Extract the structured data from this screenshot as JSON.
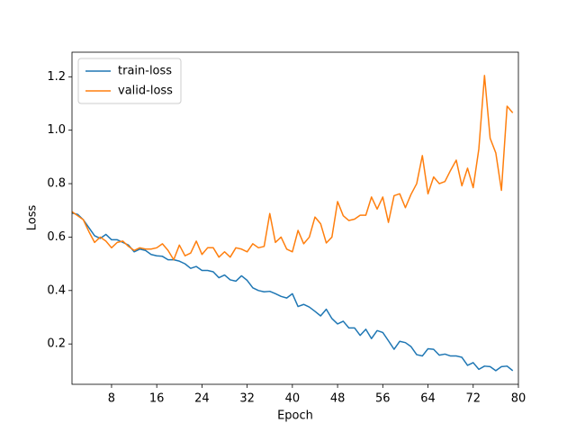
{
  "chart_data": {
    "type": "line",
    "xlabel": "Epoch",
    "ylabel": "Loss",
    "x": [
      1,
      2,
      3,
      4,
      5,
      6,
      7,
      8,
      9,
      10,
      11,
      12,
      13,
      14,
      15,
      16,
      17,
      18,
      19,
      20,
      21,
      22,
      23,
      24,
      25,
      26,
      27,
      28,
      29,
      30,
      31,
      32,
      33,
      34,
      35,
      36,
      37,
      38,
      39,
      40,
      41,
      42,
      43,
      44,
      45,
      46,
      47,
      48,
      49,
      50,
      51,
      52,
      53,
      54,
      55,
      56,
      57,
      58,
      59,
      60,
      61,
      62,
      63,
      64,
      65,
      66,
      67,
      68,
      69,
      70,
      71,
      72,
      73,
      74,
      75,
      76,
      77,
      78,
      79
    ],
    "series": [
      {
        "name": "train-loss",
        "color": "#1f77b4",
        "values": [
          0.69,
          0.685,
          0.665,
          0.635,
          0.605,
          0.595,
          0.61,
          0.59,
          0.59,
          0.58,
          0.57,
          0.545,
          0.555,
          0.55,
          0.535,
          0.53,
          0.528,
          0.515,
          0.515,
          0.51,
          0.5,
          0.483,
          0.49,
          0.475,
          0.475,
          0.47,
          0.448,
          0.458,
          0.44,
          0.435,
          0.455,
          0.438,
          0.41,
          0.4,
          0.395,
          0.397,
          0.388,
          0.378,
          0.372,
          0.388,
          0.34,
          0.348,
          0.338,
          0.322,
          0.305,
          0.33,
          0.295,
          0.275,
          0.285,
          0.26,
          0.26,
          0.232,
          0.255,
          0.22,
          0.25,
          0.243,
          0.212,
          0.18,
          0.21,
          0.205,
          0.19,
          0.16,
          0.155,
          0.182,
          0.18,
          0.158,
          0.162,
          0.155,
          0.155,
          0.15,
          0.12,
          0.13,
          0.105,
          0.117,
          0.115,
          0.1,
          0.115,
          0.117,
          0.1
        ]
      },
      {
        "name": "valid-loss",
        "color": "#ff7f0e",
        "values": [
          0.695,
          0.68,
          0.665,
          0.62,
          0.58,
          0.6,
          0.585,
          0.56,
          0.58,
          0.585,
          0.565,
          0.55,
          0.56,
          0.555,
          0.555,
          0.56,
          0.575,
          0.55,
          0.515,
          0.57,
          0.53,
          0.54,
          0.585,
          0.535,
          0.56,
          0.56,
          0.525,
          0.545,
          0.525,
          0.56,
          0.555,
          0.545,
          0.575,
          0.56,
          0.565,
          0.688,
          0.58,
          0.6,
          0.555,
          0.545,
          0.625,
          0.575,
          0.6,
          0.675,
          0.65,
          0.578,
          0.6,
          0.733,
          0.68,
          0.662,
          0.667,
          0.682,
          0.682,
          0.75,
          0.705,
          0.75,
          0.655,
          0.755,
          0.762,
          0.71,
          0.76,
          0.8,
          0.905,
          0.762,
          0.825,
          0.8,
          0.808,
          0.85,
          0.888,
          0.792,
          0.858,
          0.785,
          0.93,
          1.205,
          0.97,
          0.915,
          0.775,
          1.09,
          1.065
        ]
      }
    ],
    "xlim": [
      1,
      80
    ],
    "xticks": [
      8,
      16,
      24,
      32,
      40,
      48,
      56,
      64,
      72,
      80
    ],
    "ylim": [
      0.049,
      1.292
    ],
    "yticks": [
      0.2,
      0.4,
      0.6,
      0.8,
      {
        "value": 1,
        "label": "1.0"
      },
      1.2
    ],
    "legend": "upper left"
  }
}
